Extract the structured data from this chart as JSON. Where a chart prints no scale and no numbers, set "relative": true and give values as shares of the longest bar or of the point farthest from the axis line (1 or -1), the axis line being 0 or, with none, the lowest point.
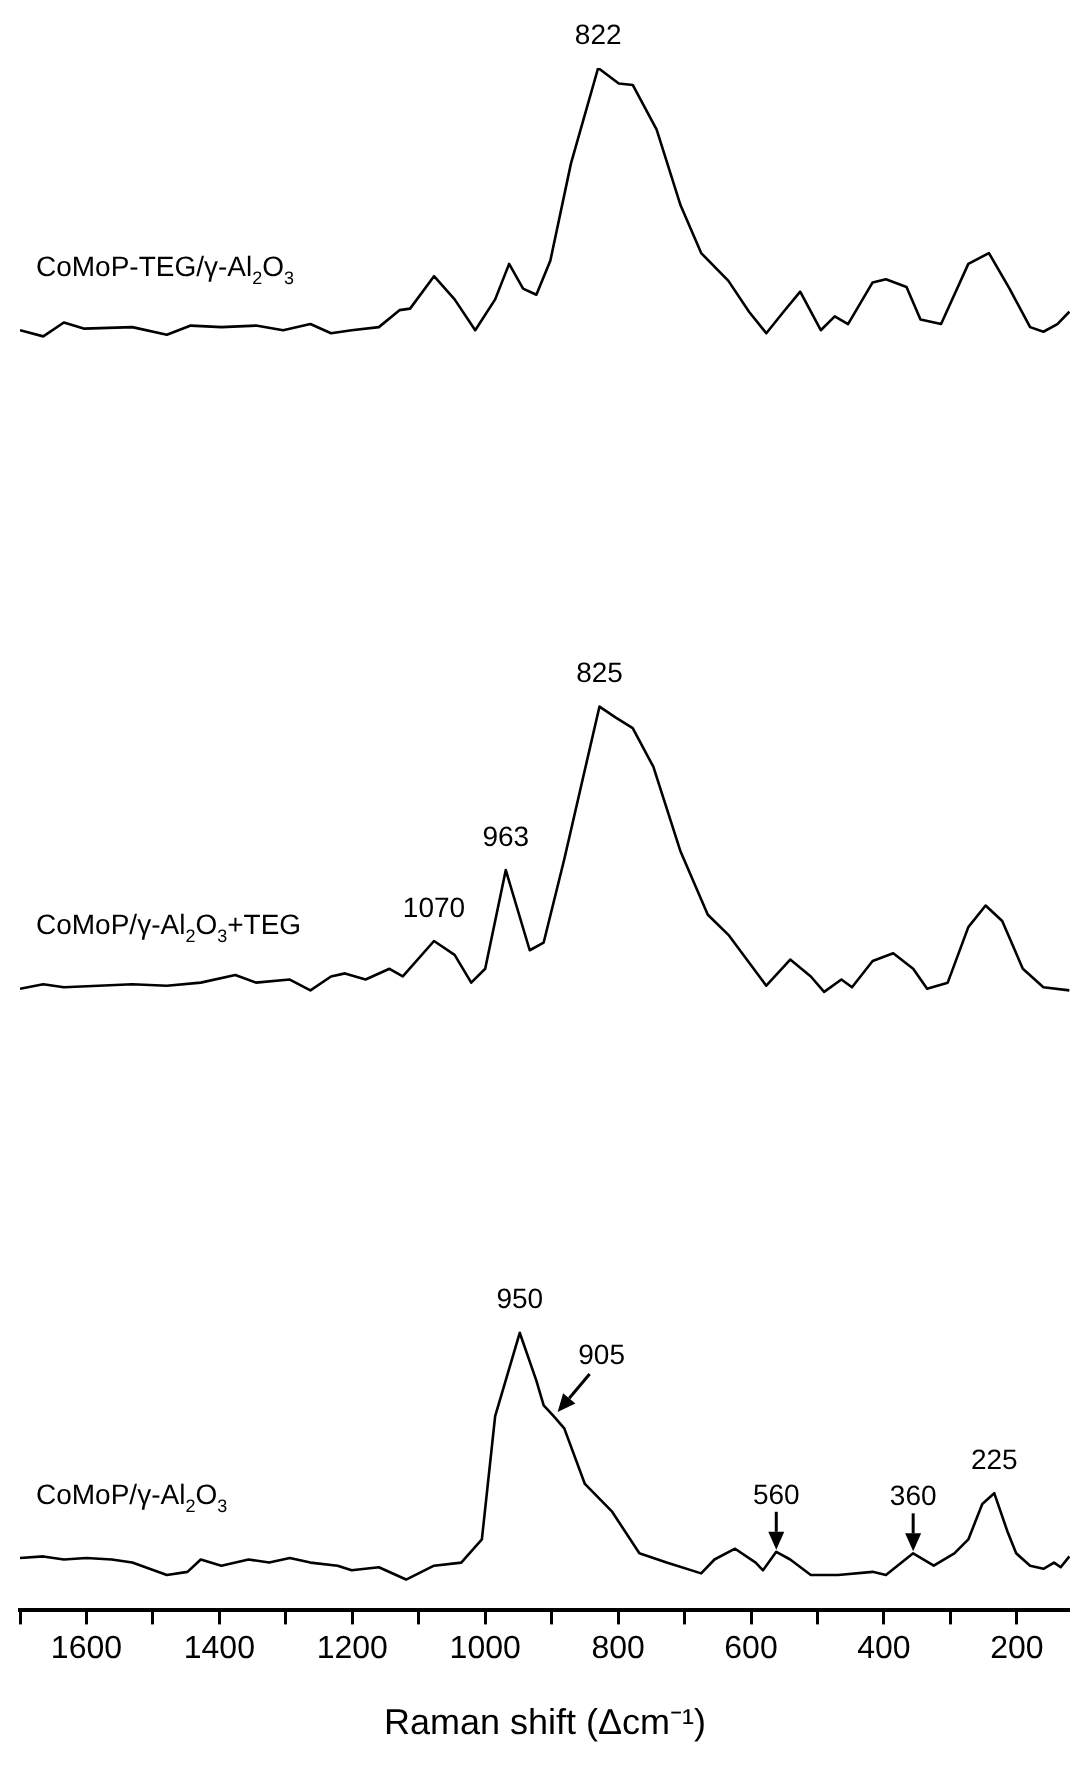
{
  "chart_data": {
    "type": "line",
    "relative": true,
    "xlabel": "Raman shift (Δcm⁻¹)",
    "xlim": [
      1700,
      120
    ],
    "xticks": [
      {
        "value": 1700,
        "label": null
      },
      1600,
      {
        "value": 1500,
        "label": null
      },
      1400,
      {
        "value": 1300,
        "label": null
      },
      1200,
      {
        "value": 1100,
        "label": null
      },
      1000,
      {
        "value": 900,
        "label": null
      },
      800,
      {
        "value": 700,
        "label": null
      },
      600,
      {
        "value": 500,
        "label": null
      },
      400,
      {
        "value": 300,
        "label": null
      },
      200
    ],
    "grid": false,
    "legend": false,
    "line_style": "solid",
    "series": [
      {
        "name": "CoMoP-TEG/γ-Al$_{2}$O$_{3}$",
        "color": "#000000",
        "x": [
          1700,
          1665,
          1634,
          1603,
          1531,
          1479,
          1443,
          1397,
          1345,
          1304,
          1263,
          1232,
          1201,
          1160,
          1129,
          1113,
          1077,
          1046,
          1015,
          985,
          964,
          943,
          923,
          902,
          871,
          830,
          799,
          778,
          742,
          706,
          675,
          634,
          603,
          577,
          551,
          526,
          495,
          474,
          454,
          417,
          397,
          366,
          345,
          314,
          273,
          242,
          211,
          180,
          160,
          139,
          121
        ],
        "values": [
          0.83,
          0.826,
          0.835,
          0.831,
          0.832,
          0.827,
          0.833,
          0.832,
          0.833,
          0.83,
          0.834,
          0.828,
          0.83,
          0.832,
          0.843,
          0.844,
          0.865,
          0.85,
          0.83,
          0.85,
          0.873,
          0.857,
          0.853,
          0.875,
          0.938,
          1,
          0.99,
          0.989,
          0.96,
          0.911,
          0.88,
          0.862,
          0.842,
          0.828,
          0.842,
          0.855,
          0.83,
          0.839,
          0.834,
          0.861,
          0.863,
          0.858,
          0.837,
          0.834,
          0.873,
          0.88,
          0.857,
          0.832,
          0.829,
          0.834,
          0.842
        ]
      },
      {
        "name": "CoMoP/γ-Al$_{2}$O$_{3}$+TEG",
        "color": "#000000",
        "x": [
          1700,
          1665,
          1634,
          1582,
          1531,
          1479,
          1428,
          1376,
          1345,
          1294,
          1263,
          1232,
          1211,
          1180,
          1144,
          1124,
          1077,
          1046,
          1021,
          1000,
          969,
          933,
          912,
          881,
          850,
          828,
          804,
          778,
          747,
          706,
          665,
          634,
          603,
          577,
          541,
          510,
          490,
          464,
          448,
          417,
          386,
          356,
          335,
          304,
          273,
          247,
          222,
          191,
          160,
          121
        ],
        "values": [
          0.403,
          0.406,
          0.404,
          0.405,
          0.406,
          0.405,
          0.407,
          0.412,
          0.407,
          0.409,
          0.402,
          0.411,
          0.413,
          0.409,
          0.416,
          0.411,
          0.434,
          0.425,
          0.407,
          0.416,
          0.48,
          0.428,
          0.433,
          0.487,
          0.545,
          0.586,
          0.579,
          0.572,
          0.547,
          0.492,
          0.451,
          0.438,
          0.42,
          0.405,
          0.422,
          0.411,
          0.401,
          0.409,
          0.404,
          0.421,
          0.426,
          0.416,
          0.403,
          0.407,
          0.443,
          0.457,
          0.447,
          0.416,
          0.404,
          0.402
        ]
      },
      {
        "name": "CoMoP/γ-Al$_{2}$O$_{3}$",
        "color": "#000000",
        "x": [
          1700,
          1665,
          1634,
          1600,
          1562,
          1531,
          1479,
          1448,
          1428,
          1397,
          1356,
          1325,
          1294,
          1263,
          1222,
          1201,
          1160,
          1119,
          1077,
          1036,
          1005,
          985,
          948,
          923,
          912,
          897,
          881,
          850,
          809,
          768,
          727,
          675,
          655,
          624,
          593,
          582,
          562,
          541,
          510,
          469,
          417,
          397,
          356,
          325,
          294,
          273,
          252,
          234,
          214,
          201,
          180,
          160,
          144,
          134,
          121
        ],
        "values": [
          0.034,
          0.035,
          0.033,
          0.034,
          0.033,
          0.031,
          0.023,
          0.025,
          0.033,
          0.029,
          0.033,
          0.031,
          0.034,
          0.031,
          0.029,
          0.026,
          0.028,
          0.02,
          0.029,
          0.031,
          0.046,
          0.126,
          0.18,
          0.149,
          0.133,
          0.126,
          0.118,
          0.082,
          0.064,
          0.037,
          0.031,
          0.024,
          0.033,
          0.04,
          0.031,
          0.026,
          0.038,
          0.033,
          0.023,
          0.023,
          0.025,
          0.023,
          0.037,
          0.029,
          0.037,
          0.046,
          0.069,
          0.076,
          0.051,
          0.037,
          0.029,
          0.027,
          0.031,
          0.028,
          0.035
        ]
      }
    ],
    "annotations": [
      {
        "text": "822",
        "x": 830,
        "y": 1
      },
      {
        "text": "825",
        "x": 828,
        "y": 0.586
      },
      {
        "text": "963",
        "x": 969,
        "y": 0.48
      },
      {
        "text": "1070",
        "x": 1077,
        "y": 0.434
      },
      {
        "text": "950",
        "x": 948,
        "y": 0.18
      },
      {
        "text": "905",
        "x": 897,
        "y": 0.126
      },
      {
        "text": "560",
        "x": 562,
        "y": 0.038
      },
      {
        "text": "360",
        "x": 356,
        "y": 0.037
      },
      {
        "text": "225",
        "x": 234,
        "y": 0.076
      }
    ]
  }
}
